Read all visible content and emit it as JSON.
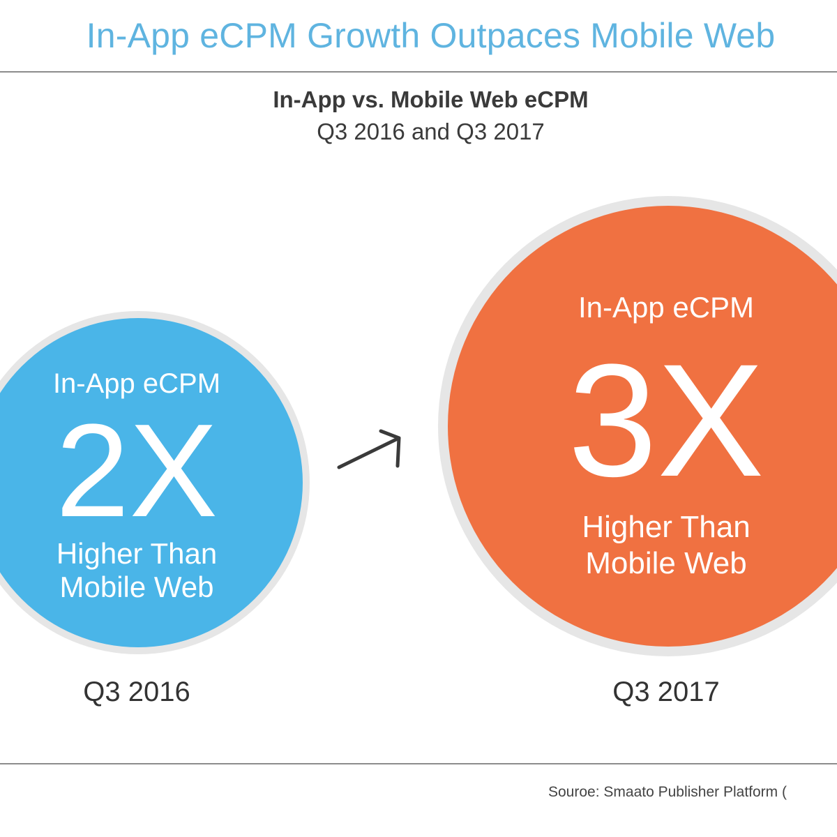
{
  "header": {
    "headline": "In-App eCPM Growth Outpaces Mobile Web"
  },
  "subtitle": {
    "main": "In-App vs. Mobile Web eCPM",
    "sub": "Q3 2016 and Q3 2017"
  },
  "left_bubble": {
    "top_label": "In-App eCPM",
    "multiplier": "2X",
    "line1": "Higher Than",
    "line2": "Mobile Web",
    "period": "Q3 2016",
    "color": "#4ab5e8"
  },
  "right_bubble": {
    "top_label": "In-App eCPM",
    "multiplier": "3X",
    "line1": "Higher Than",
    "line2": "Mobile Web",
    "period": "Q3 2017",
    "color": "#f07141"
  },
  "arrow_icon": "arrow-right-icon",
  "footer": {
    "source": "Souroe: Smaato Publisher Platform ("
  },
  "colors": {
    "headline": "#5fb4e0",
    "ring": "#e6e6e6",
    "text_dark": "#333333"
  }
}
